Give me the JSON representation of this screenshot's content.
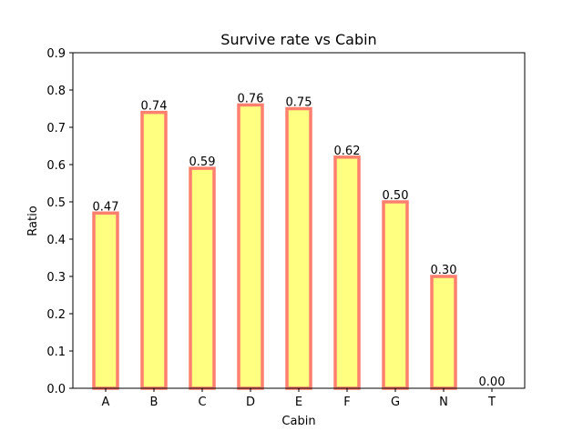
{
  "chart_data": {
    "type": "bar",
    "title": "Survive rate vs Cabin",
    "xlabel": "Cabin",
    "ylabel": "Ratio",
    "categories": [
      "A",
      "B",
      "C",
      "D",
      "E",
      "F",
      "G",
      "N",
      "T"
    ],
    "values": [
      0.47,
      0.74,
      0.59,
      0.76,
      0.75,
      0.62,
      0.5,
      0.3,
      0.0
    ],
    "data_labels": [
      "0.47",
      "0.74",
      "0.59",
      "0.76",
      "0.75",
      "0.62",
      "0.50",
      "0.30",
      "0.00"
    ],
    "ylim": [
      0,
      0.9
    ],
    "yticks": [
      "0.0",
      "0.1",
      "0.2",
      "0.3",
      "0.4",
      "0.5",
      "0.6",
      "0.7",
      "0.8",
      "0.9"
    ],
    "grid": false,
    "legend": "none",
    "colors": {
      "bar_fill": "#ffff80",
      "bar_edge": "#ff7f6e",
      "axis": "#000000"
    }
  }
}
